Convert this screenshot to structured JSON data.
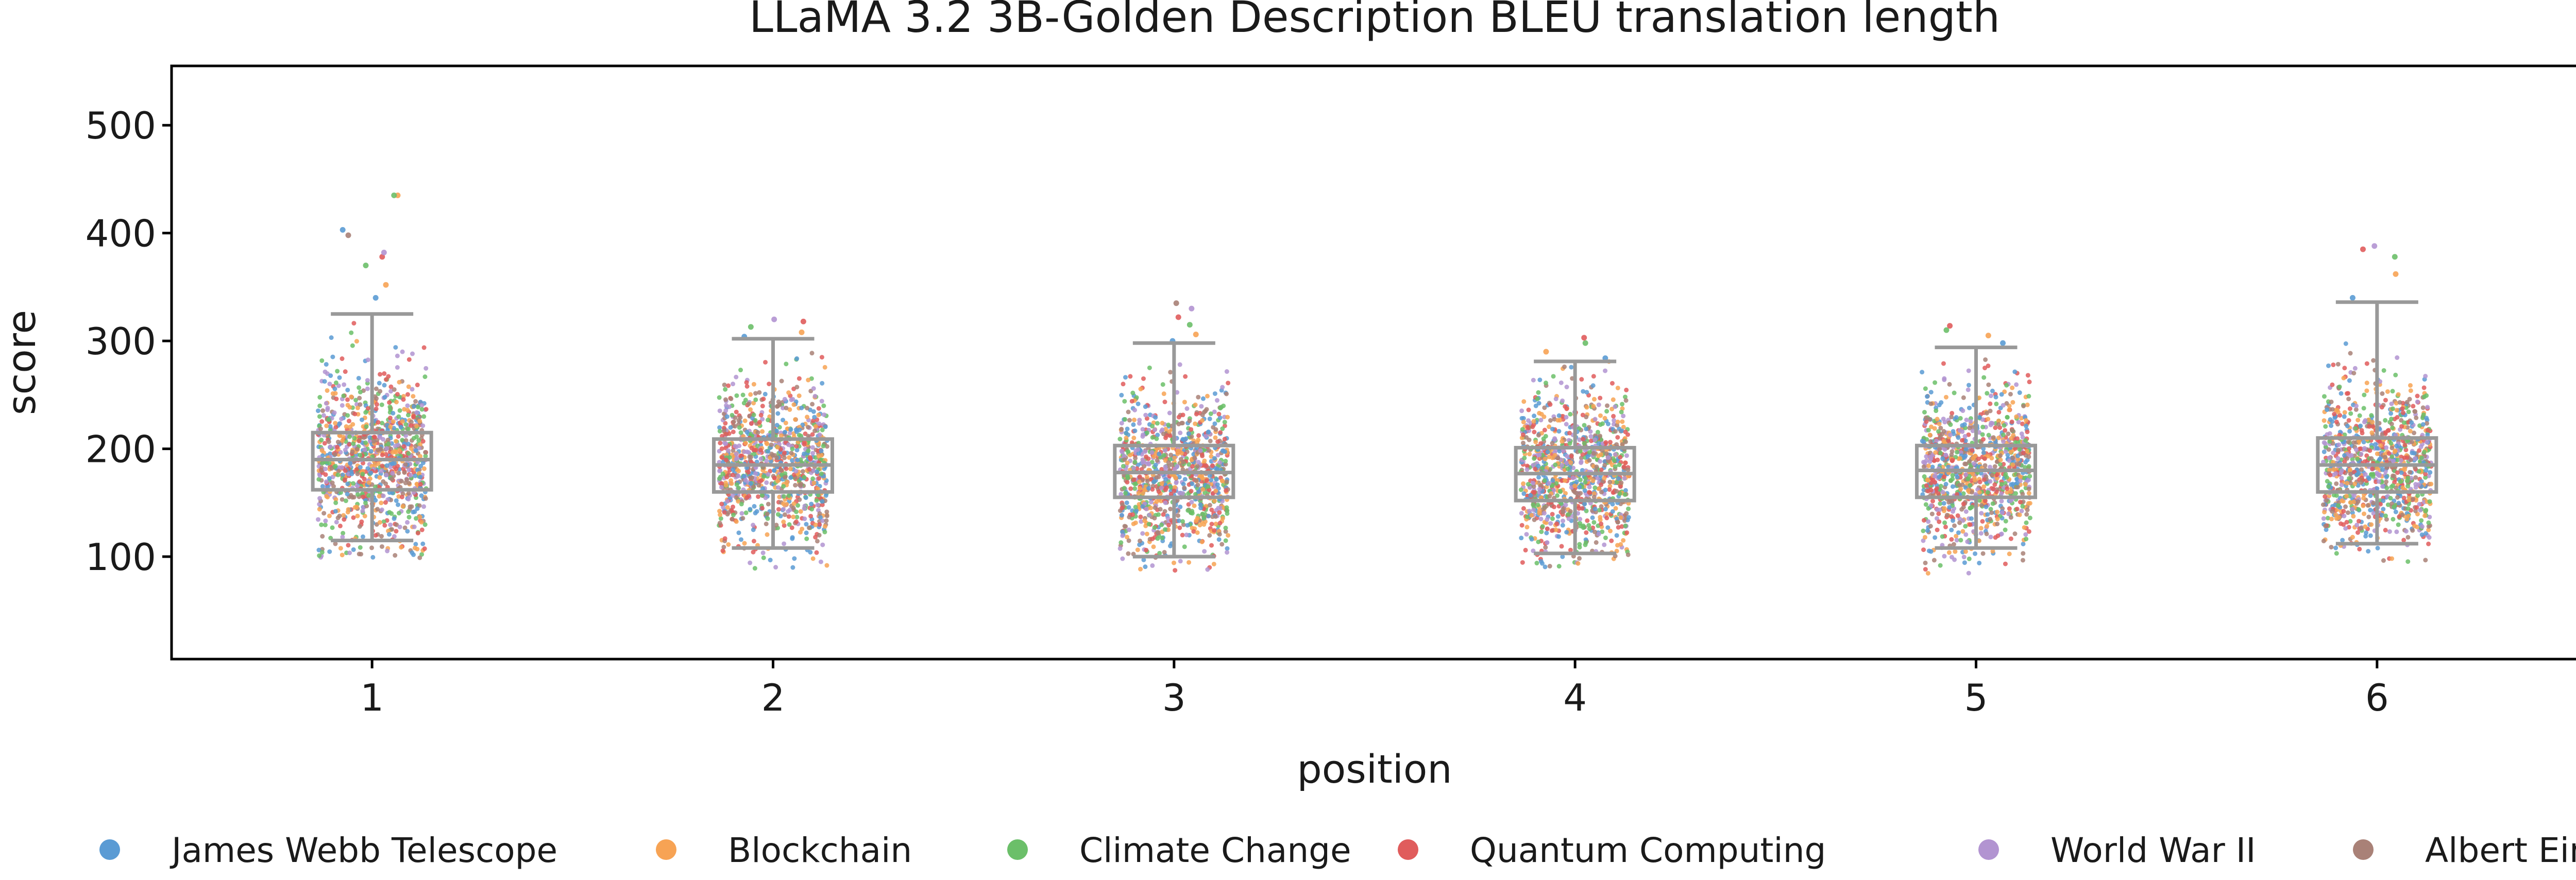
{
  "chart_data": {
    "type": "box-strip",
    "title": "LLaMA 3.2 3B-Golden Description BLEU translation length",
    "xlabel": "position",
    "ylabel": "score",
    "categories": [
      "1",
      "2",
      "3",
      "4",
      "5",
      "6"
    ],
    "ylim": [
      5,
      555
    ],
    "yticks": [
      100,
      200,
      300,
      400,
      500
    ],
    "grid": false,
    "legend": {
      "placement": "bottom",
      "entries": [
        {
          "name": "James Webb Telescope",
          "color": "#5a9bd4"
        },
        {
          "name": "Blockchain",
          "color": "#f7a354"
        },
        {
          "name": "Climate Change",
          "color": "#6bbf69"
        },
        {
          "name": "Quantum Computing",
          "color": "#e05c5c"
        },
        {
          "name": "World War II",
          "color": "#b294d1"
        },
        {
          "name": "Albert Einstein",
          "color": "#a98177"
        }
      ]
    },
    "box_color": "#999999",
    "boxes": [
      {
        "category": "1",
        "whisker_low": 115,
        "q1": 162,
        "median": 190,
        "q3": 215,
        "whisker_high": 325,
        "points_min": 97,
        "points_max": 326,
        "outliers": [
          340,
          352,
          370,
          378,
          382,
          398,
          403,
          435,
          435
        ]
      },
      {
        "category": "2",
        "whisker_low": 108,
        "q1": 160,
        "median": 185,
        "q3": 209,
        "whisker_high": 302,
        "points_min": 86,
        "points_max": 302,
        "outliers": [
          304,
          308,
          313,
          318,
          320
        ]
      },
      {
        "category": "3",
        "whisker_low": 100,
        "q1": 155,
        "median": 178,
        "q3": 203,
        "whisker_high": 298,
        "points_min": 86,
        "points_max": 298,
        "outliers": [
          300,
          306,
          315,
          322,
          330,
          335
        ]
      },
      {
        "category": "4",
        "whisker_low": 103,
        "q1": 152,
        "median": 177,
        "q3": 201,
        "whisker_high": 281,
        "points_min": 90,
        "points_max": 281,
        "outliers": [
          284,
          290,
          298,
          303
        ]
      },
      {
        "category": "5",
        "whisker_low": 108,
        "q1": 155,
        "median": 180,
        "q3": 203,
        "whisker_high": 294,
        "points_min": 84,
        "points_max": 294,
        "outliers": [
          298,
          305,
          310,
          314
        ]
      },
      {
        "category": "6",
        "whisker_low": 112,
        "q1": 160,
        "median": 185,
        "q3": 210,
        "whisker_high": 336,
        "points_min": 92,
        "points_max": 336,
        "outliers": [
          340,
          362,
          378,
          385,
          388
        ]
      }
    ]
  }
}
